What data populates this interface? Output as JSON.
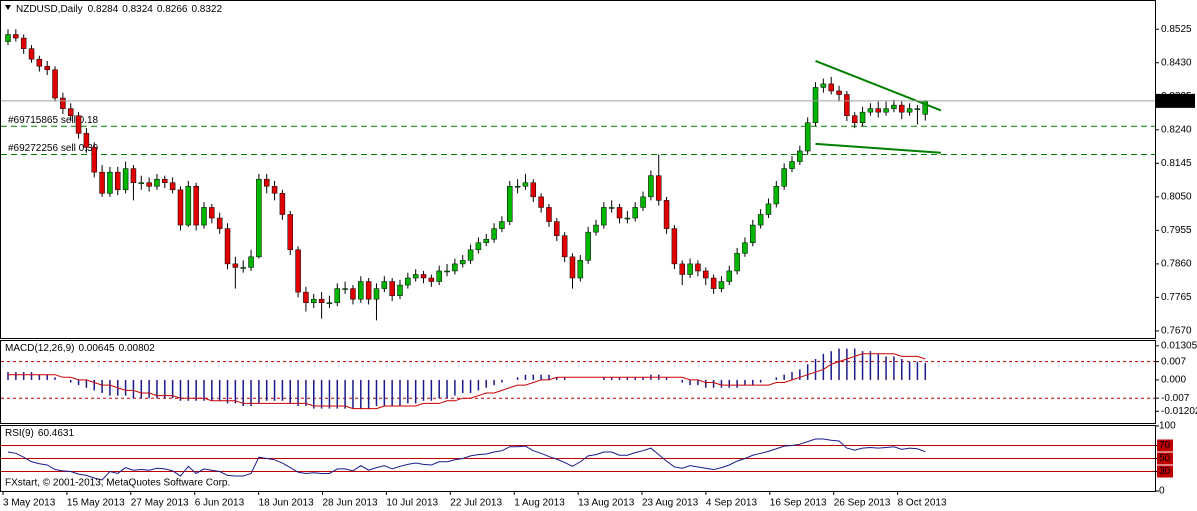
{
  "chart_data": [
    {
      "type": "candlestick",
      "symbol": "NZDUSD,Daily",
      "up_color": "#00b400",
      "down_color": "#e00000",
      "wick_color": "#000000",
      "ylim": [
        0.765,
        0.8605
      ],
      "yticks": [
        0.8525,
        {
          "value": 0.843,
          "label": "0.8430"
        },
        0.8335,
        {
          "value": 0.824,
          "label": "0.8240"
        },
        0.8145,
        {
          "value": 0.805,
          "label": "0.8050"
        },
        0.7955,
        {
          "value": 0.786,
          "label": "0.7860"
        },
        0.7765,
        {
          "value": 0.767,
          "label": "0.7670"
        }
      ],
      "x_axis_labels": [
        "3 May 2013",
        "15 May 2013",
        "27 May 2013",
        "6 Jun 2013",
        "18 Jun 2013",
        "28 Jun 2013",
        "10 Jul 2013",
        "22 Jul 2013",
        "1 Aug 2013",
        "13 Aug 2013",
        "23 Aug 2013",
        "4 Sep 2013",
        "16 Sep 2013",
        "26 Sep 2013",
        "8 Oct 2013"
      ],
      "orders": [
        {
          "label": "#69715865 sell 0.18",
          "price": 0.825,
          "color": "#008000"
        },
        {
          "label": "#69272256 sell 0.30",
          "price": 0.817,
          "color": "#008000"
        }
      ],
      "trendlines": [
        {
          "color": "#008000",
          "points": [
            [
              103,
              0.8435
            ],
            [
              119,
              0.8295
            ]
          ]
        },
        {
          "color": "#008000",
          "points": [
            [
              103,
              0.82
            ],
            [
              119,
              0.8175
            ]
          ]
        }
      ],
      "ohlc": [
        [
          0.849,
          0.8525,
          0.848,
          0.851
        ],
        [
          0.851,
          0.8525,
          0.849,
          0.85
        ],
        [
          0.85,
          0.851,
          0.8455,
          0.847
        ],
        [
          0.847,
          0.848,
          0.843,
          0.844
        ],
        [
          0.844,
          0.845,
          0.8405,
          0.842
        ],
        [
          0.842,
          0.8435,
          0.8395,
          0.841
        ],
        [
          0.841,
          0.842,
          0.832,
          0.833
        ],
        [
          0.833,
          0.8345,
          0.8285,
          0.83
        ],
        [
          0.83,
          0.8315,
          0.8265,
          0.828
        ],
        [
          0.828,
          0.829,
          0.8215,
          0.823
        ],
        [
          0.823,
          0.8245,
          0.8175,
          0.819
        ],
        [
          0.819,
          0.8205,
          0.8105,
          0.812
        ],
        [
          0.812,
          0.814,
          0.805,
          0.806
        ],
        [
          0.806,
          0.8135,
          0.805,
          0.812
        ],
        [
          0.812,
          0.8135,
          0.8055,
          0.807
        ],
        [
          0.807,
          0.815,
          0.806,
          0.813
        ],
        [
          0.813,
          0.814,
          0.804,
          0.809
        ],
        [
          0.809,
          0.811,
          0.807,
          0.809
        ],
        [
          0.809,
          0.8105,
          0.8065,
          0.808
        ],
        [
          0.808,
          0.8115,
          0.807,
          0.81
        ],
        [
          0.81,
          0.811,
          0.8075,
          0.809
        ],
        [
          0.809,
          0.8105,
          0.806,
          0.807
        ],
        [
          0.807,
          0.808,
          0.7955,
          0.797
        ],
        [
          0.797,
          0.8095,
          0.7965,
          0.808
        ],
        [
          0.808,
          0.809,
          0.7955,
          0.797
        ],
        [
          0.797,
          0.8035,
          0.796,
          0.802
        ],
        [
          0.802,
          0.803,
          0.7975,
          0.799
        ],
        [
          0.799,
          0.8005,
          0.7945,
          0.796
        ],
        [
          0.796,
          0.7975,
          0.7845,
          0.786
        ],
        [
          0.786,
          0.788,
          0.779,
          0.785
        ],
        [
          0.785,
          0.787,
          0.7835,
          0.785
        ],
        [
          0.785,
          0.79,
          0.784,
          0.788
        ],
        [
          0.788,
          0.8115,
          0.7875,
          0.81
        ],
        [
          0.81,
          0.8115,
          0.806,
          0.808
        ],
        [
          0.808,
          0.8095,
          0.804,
          0.806
        ],
        [
          0.806,
          0.807,
          0.7985,
          0.8
        ],
        [
          0.8,
          0.801,
          0.7885,
          0.79
        ],
        [
          0.79,
          0.791,
          0.7765,
          0.778
        ],
        [
          0.778,
          0.7795,
          0.7725,
          0.775
        ],
        [
          0.775,
          0.7775,
          0.7735,
          0.776
        ],
        [
          0.776,
          0.778,
          0.7705,
          0.775
        ],
        [
          0.775,
          0.777,
          0.7735,
          0.775
        ],
        [
          0.775,
          0.7805,
          0.774,
          0.779
        ],
        [
          0.779,
          0.781,
          0.7775,
          0.779
        ],
        [
          0.779,
          0.78,
          0.7745,
          0.776
        ],
        [
          0.776,
          0.7825,
          0.775,
          0.781
        ],
        [
          0.781,
          0.782,
          0.7745,
          0.776
        ],
        [
          0.776,
          0.7805,
          0.77,
          0.779
        ],
        [
          0.779,
          0.7825,
          0.778,
          0.781
        ],
        [
          0.781,
          0.782,
          0.7755,
          0.777
        ],
        [
          0.777,
          0.7815,
          0.776,
          0.78
        ],
        [
          0.78,
          0.7835,
          0.779,
          0.782
        ],
        [
          0.782,
          0.7845,
          0.781,
          0.783
        ],
        [
          0.783,
          0.784,
          0.7805,
          0.782
        ],
        [
          0.782,
          0.783,
          0.7795,
          0.781
        ],
        [
          0.781,
          0.7855,
          0.78,
          0.784
        ],
        [
          0.784,
          0.786,
          0.7825,
          0.784
        ],
        [
          0.784,
          0.7875,
          0.783,
          0.786
        ],
        [
          0.786,
          0.7885,
          0.785,
          0.787
        ],
        [
          0.787,
          0.7915,
          0.786,
          0.79
        ],
        [
          0.79,
          0.7935,
          0.789,
          0.792
        ],
        [
          0.792,
          0.7945,
          0.791,
          0.793
        ],
        [
          0.793,
          0.7975,
          0.792,
          0.796
        ],
        [
          0.796,
          0.7995,
          0.795,
          0.798
        ],
        [
          0.798,
          0.8095,
          0.797,
          0.808
        ],
        [
          0.808,
          0.81,
          0.806,
          0.808
        ],
        [
          0.808,
          0.8115,
          0.807,
          0.809
        ],
        [
          0.809,
          0.81,
          0.8035,
          0.805
        ],
        [
          0.805,
          0.806,
          0.8005,
          0.802
        ],
        [
          0.802,
          0.803,
          0.7965,
          0.798
        ],
        [
          0.798,
          0.799,
          0.7925,
          0.794
        ],
        [
          0.794,
          0.795,
          0.7865,
          0.788
        ],
        [
          0.788,
          0.789,
          0.779,
          0.782
        ],
        [
          0.782,
          0.7885,
          0.781,
          0.787
        ],
        [
          0.787,
          0.7965,
          0.786,
          0.795
        ],
        [
          0.795,
          0.7985,
          0.794,
          0.797
        ],
        [
          0.797,
          0.8035,
          0.796,
          0.802
        ],
        [
          0.802,
          0.804,
          0.8005,
          0.802
        ],
        [
          0.802,
          0.803,
          0.7975,
          0.799
        ],
        [
          0.799,
          0.801,
          0.7975,
          0.799
        ],
        [
          0.799,
          0.8035,
          0.798,
          0.802
        ],
        [
          0.802,
          0.8065,
          0.801,
          0.805
        ],
        [
          0.805,
          0.8125,
          0.804,
          0.811
        ],
        [
          0.811,
          0.817,
          0.8025,
          0.804
        ],
        [
          0.804,
          0.805,
          0.7945,
          0.796
        ],
        [
          0.796,
          0.797,
          0.7845,
          0.786
        ],
        [
          0.786,
          0.787,
          0.78,
          0.783
        ],
        [
          0.783,
          0.7875,
          0.782,
          0.786
        ],
        [
          0.786,
          0.787,
          0.7825,
          0.784
        ],
        [
          0.784,
          0.785,
          0.78,
          0.782
        ],
        [
          0.782,
          0.783,
          0.7775,
          0.779
        ],
        [
          0.779,
          0.7825,
          0.778,
          0.781
        ],
        [
          0.781,
          0.7855,
          0.78,
          0.784
        ],
        [
          0.784,
          0.7905,
          0.783,
          0.789
        ],
        [
          0.789,
          0.7935,
          0.788,
          0.792
        ],
        [
          0.792,
          0.7985,
          0.791,
          0.797
        ],
        [
          0.797,
          0.8015,
          0.796,
          0.8
        ],
        [
          0.8,
          0.8045,
          0.799,
          0.803
        ],
        [
          0.803,
          0.8095,
          0.802,
          0.808
        ],
        [
          0.808,
          0.8145,
          0.807,
          0.813
        ],
        [
          0.813,
          0.8165,
          0.812,
          0.815
        ],
        [
          0.815,
          0.8195,
          0.814,
          0.818
        ],
        [
          0.818,
          0.8275,
          0.817,
          0.826
        ],
        [
          0.826,
          0.8375,
          0.825,
          0.836
        ],
        [
          0.836,
          0.8385,
          0.8345,
          0.837
        ],
        [
          0.837,
          0.839,
          0.834,
          0.835
        ],
        [
          0.835,
          0.8365,
          0.832,
          0.834
        ],
        [
          0.834,
          0.835,
          0.8265,
          0.828
        ],
        [
          0.828,
          0.829,
          0.8245,
          0.826
        ],
        [
          0.826,
          0.8305,
          0.825,
          0.829
        ],
        [
          0.829,
          0.8315,
          0.828,
          0.83
        ],
        [
          0.83,
          0.832,
          0.8275,
          0.829
        ],
        [
          0.829,
          0.832,
          0.828,
          0.83
        ],
        [
          0.83,
          0.8325,
          0.829,
          0.831
        ],
        [
          0.831,
          0.832,
          0.827,
          0.829
        ],
        [
          0.829,
          0.8315,
          0.828,
          0.83
        ],
        [
          0.83,
          0.831,
          0.8255,
          0.83
        ],
        [
          0.8284,
          0.8324,
          0.8266,
          0.8322
        ]
      ]
    },
    {
      "type": "macd",
      "title": "MACD(12,26,9)",
      "ylim": [
        -0.0165,
        0.0149
      ],
      "yticks": [
        0.01305,
        0.007,
        {
          "value": 0,
          "label": "0.000"
        },
        -0.007,
        -0.01202
      ],
      "levels": [
        0.007,
        -0.007
      ],
      "level_color": "#c00000",
      "histogram": {
        "color": "#1a1a8c",
        "values": [
          0.003,
          0.003,
          0.003,
          0.003,
          0.002,
          0.002,
          0.001,
          0,
          -0.001,
          -0.002,
          -0.003,
          -0.004,
          -0.005,
          -0.006,
          -0.006,
          -0.006,
          -0.007,
          -0.007,
          -0.007,
          -0.007,
          -0.007,
          -0.007,
          -0.008,
          -0.008,
          -0.008,
          -0.008,
          -0.008,
          -0.008,
          -0.009,
          -0.009,
          -0.01,
          -0.01,
          -0.009,
          -0.008,
          -0.008,
          -0.008,
          -0.009,
          -0.01,
          -0.01,
          -0.011,
          -0.011,
          -0.011,
          -0.011,
          -0.011,
          -0.011,
          -0.011,
          -0.011,
          -0.01,
          -0.01,
          -0.01,
          -0.01,
          -0.009,
          -0.009,
          -0.008,
          -0.008,
          -0.007,
          -0.007,
          -0.006,
          -0.005,
          -0.005,
          -0.004,
          -0.003,
          -0.002,
          -0.001,
          0,
          0.001,
          0.002,
          0.002,
          0.002,
          0.002,
          0.001,
          0.001,
          0,
          0,
          0,
          0,
          0.001,
          0.001,
          0.001,
          0.001,
          0.001,
          0.001,
          0.002,
          0.002,
          0.001,
          0,
          -0.001,
          -0.002,
          -0.002,
          -0.003,
          -0.003,
          -0.003,
          -0.003,
          -0.003,
          -0.002,
          -0.002,
          -0.001,
          0,
          0.001,
          0.002,
          0.003,
          0.004,
          0.006,
          0.008,
          0.01,
          0.011,
          0.012,
          0.012,
          0.012,
          0.011,
          0.011,
          0.01,
          0.009,
          0.009,
          0.008,
          0.007,
          0.007,
          0.00645
        ]
      },
      "signal": {
        "color": "#c80000",
        "values": [
          0.002,
          0.002,
          0.002,
          0.002,
          0.002,
          0.002,
          0.002,
          0.001,
          0.001,
          0,
          0,
          -0.001,
          -0.002,
          -0.002,
          -0.003,
          -0.004,
          -0.004,
          -0.005,
          -0.005,
          -0.006,
          -0.006,
          -0.006,
          -0.007,
          -0.007,
          -0.007,
          -0.007,
          -0.008,
          -0.008,
          -0.008,
          -0.008,
          -0.009,
          -0.009,
          -0.009,
          -0.009,
          -0.009,
          -0.009,
          -0.009,
          -0.009,
          -0.009,
          -0.01,
          -0.01,
          -0.01,
          -0.01,
          -0.01,
          -0.011,
          -0.011,
          -0.011,
          -0.011,
          -0.01,
          -0.01,
          -0.01,
          -0.01,
          -0.01,
          -0.009,
          -0.009,
          -0.009,
          -0.008,
          -0.008,
          -0.007,
          -0.007,
          -0.006,
          -0.005,
          -0.005,
          -0.004,
          -0.003,
          -0.002,
          -0.002,
          -0.001,
          0,
          0,
          0.001,
          0.001,
          0.001,
          0.001,
          0.001,
          0.001,
          0.001,
          0.001,
          0.001,
          0.001,
          0.001,
          0.001,
          0.001,
          0.001,
          0.001,
          0.001,
          0.001,
          0,
          0,
          -0.001,
          -0.001,
          -0.002,
          -0.002,
          -0.002,
          -0.002,
          -0.002,
          -0.002,
          -0.002,
          -0.001,
          -0.001,
          0,
          0.001,
          0.002,
          0.003,
          0.004,
          0.006,
          0.007,
          0.008,
          0.009,
          0.01,
          0.01,
          0.01,
          0.01,
          0.01,
          0.009,
          0.009,
          0.009,
          0.00802
        ]
      }
    },
    {
      "type": "line",
      "title": "RSI(9)",
      "ylim": [
        0,
        100
      ],
      "yticks": [
        100,
        70,
        50,
        30,
        0
      ],
      "levels": [
        70,
        50,
        30
      ],
      "level_color": "#c00000",
      "series": [
        {
          "color": "#1a1a8c",
          "values": [
            60,
            58,
            52,
            45,
            42,
            40,
            33,
            31,
            30,
            26,
            24,
            20,
            17,
            30,
            27,
            36,
            32,
            33,
            32,
            35,
            34,
            31,
            23,
            38,
            27,
            34,
            32,
            30,
            24,
            23,
            23,
            27,
            52,
            50,
            48,
            43,
            36,
            29,
            27,
            28,
            27,
            27,
            34,
            34,
            31,
            39,
            32,
            36,
            39,
            34,
            38,
            41,
            43,
            41,
            40,
            45,
            45,
            48,
            50,
            54,
            56,
            57,
            60,
            62,
            68,
            68,
            69,
            62,
            58,
            53,
            49,
            44,
            38,
            45,
            54,
            56,
            60,
            60,
            55,
            55,
            59,
            62,
            66,
            56,
            46,
            37,
            35,
            39,
            37,
            35,
            33,
            36,
            40,
            46,
            50,
            55,
            58,
            61,
            65,
            69,
            70,
            72,
            76,
            80,
            80,
            78,
            77,
            66,
            63,
            66,
            67,
            66,
            67,
            68,
            64,
            66,
            65,
            60.4631
          ]
        }
      ]
    }
  ],
  "copyright": "FXstart, © 2001-2013, MetaQuotes Software Corp."
}
